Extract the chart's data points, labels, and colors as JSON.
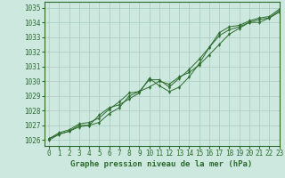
{
  "title": "Graphe pression niveau de la mer (hPa)",
  "bg_color": "#cce8df",
  "grid_color": "#a8ccbe",
  "line_color": "#2d6b2d",
  "marker_color": "#2d6b2d",
  "xlim": [
    -0.5,
    23
  ],
  "ylim": [
    1025.6,
    1035.4
  ],
  "yticks": [
    1026,
    1027,
    1028,
    1029,
    1030,
    1031,
    1032,
    1033,
    1034,
    1035
  ],
  "xticks": [
    0,
    1,
    2,
    3,
    4,
    5,
    6,
    7,
    8,
    9,
    10,
    11,
    12,
    13,
    14,
    15,
    16,
    17,
    18,
    19,
    20,
    21,
    22,
    23
  ],
  "series": [
    [
      1026.1,
      1026.4,
      1026.6,
      1027.0,
      1027.0,
      1027.7,
      1028.2,
      1028.4,
      1028.8,
      1029.2,
      1030.2,
      1029.7,
      1029.3,
      1029.6,
      1030.3,
      1031.2,
      1032.3,
      1033.1,
      1033.5,
      1033.7,
      1034.0,
      1034.2,
      1034.3,
      1034.8
    ],
    [
      1026.0,
      1026.4,
      1026.6,
      1026.9,
      1027.0,
      1027.2,
      1027.8,
      1028.2,
      1029.0,
      1029.3,
      1029.6,
      1030.0,
      1029.8,
      1030.3,
      1030.6,
      1031.1,
      1031.8,
      1032.5,
      1033.2,
      1033.6,
      1034.0,
      1034.0,
      1034.3,
      1034.7
    ],
    [
      1026.1,
      1026.5,
      1026.7,
      1027.1,
      1027.2,
      1027.5,
      1028.1,
      1028.6,
      1029.2,
      1029.3,
      1030.1,
      1030.1,
      1029.6,
      1030.2,
      1030.8,
      1031.5,
      1032.3,
      1033.3,
      1033.7,
      1033.8,
      1034.1,
      1034.3,
      1034.4,
      1034.9
    ]
  ],
  "tick_fontsize": 5.5,
  "label_fontsize": 6.5
}
